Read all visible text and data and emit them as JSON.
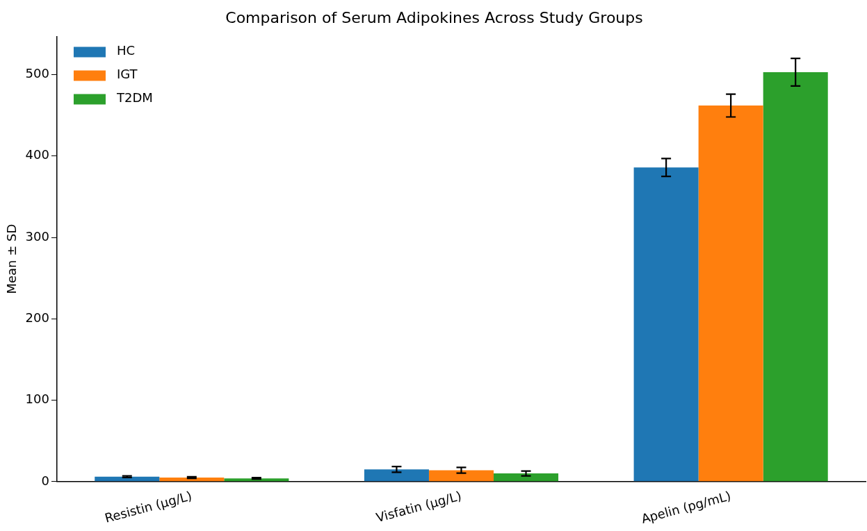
{
  "chart_data": {
    "type": "bar",
    "title": "Comparison of Serum Adipokines Across Study Groups",
    "ylabel": "Mean ± SD",
    "categories": [
      "Resistin (µg/L)",
      "Visfatin (µg/L)",
      "Apelin (pg/mL)"
    ],
    "series": [
      {
        "name": "HC",
        "color": "#1f77b4",
        "values": [
          6,
          15,
          386
        ],
        "errors": [
          1,
          3.5,
          11
        ]
      },
      {
        "name": "IGT",
        "color": "#ff7f0e",
        "values": [
          5,
          14,
          462
        ],
        "errors": [
          1,
          3.5,
          14
        ]
      },
      {
        "name": "T2DM",
        "color": "#2ca02c",
        "values": [
          4,
          10,
          503
        ],
        "errors": [
          0.8,
          3,
          17
        ]
      }
    ],
    "ylim": [
      0,
      547
    ],
    "yticks": [
      0,
      100,
      200,
      300,
      400,
      500
    ],
    "grid": false,
    "legend": "top left"
  }
}
